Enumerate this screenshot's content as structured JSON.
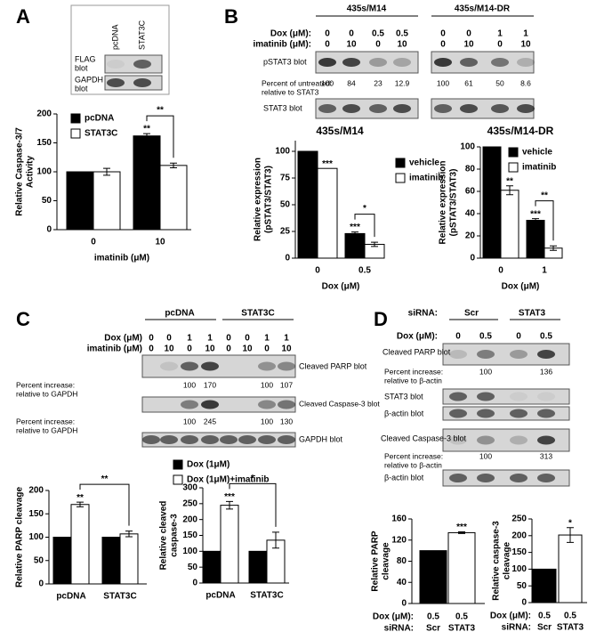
{
  "panel_labels": [
    "A",
    "B",
    "C",
    "D"
  ],
  "chart_data": [
    {
      "type": "bar",
      "categories": [
        "0",
        "10"
      ],
      "xlabel": "imatinib (μM)",
      "ylabel": [
        "Relative Caspase-3/7",
        "Activity"
      ],
      "ylim": [
        0,
        200
      ],
      "yticks": [
        0,
        50,
        100,
        150,
        200
      ],
      "series": [
        {
          "name": "pcDNA",
          "color": "#000000",
          "values": [
            100,
            162
          ],
          "errors": [
            null,
            4
          ],
          "stars": [
            null,
            "**"
          ]
        },
        {
          "name": "STAT3C",
          "color": "#ffffff",
          "values": [
            100,
            111
          ],
          "errors": [
            6,
            4
          ],
          "stars": [
            null,
            null
          ]
        }
      ],
      "bracket": "**"
    },
    {
      "type": "bar",
      "title": "435s/M14",
      "categories": [
        "0",
        "0.5"
      ],
      "xlabel": "Dox (μM)",
      "ylabel": [
        "Relative expression",
        "(pSTAT3/STAT3)"
      ],
      "ylim": [
        0,
        110
      ],
      "yticks": [
        0,
        25,
        50,
        75,
        100
      ],
      "series": [
        {
          "name": "vehicle",
          "color": "#000000",
          "values": [
            100,
            23
          ],
          "errors": [
            null,
            1.5
          ],
          "stars": [
            null,
            "***"
          ]
        },
        {
          "name": "imatinib",
          "color": "#ffffff",
          "values": [
            84,
            12.9
          ],
          "errors": [
            null,
            2
          ],
          "stars": [
            "***",
            null
          ]
        }
      ],
      "bracket": "*"
    },
    {
      "type": "bar",
      "title": "435s/M14-DR",
      "categories": [
        "0",
        "1"
      ],
      "xlabel": "Dox (μM)",
      "ylabel": [
        "Relative expression",
        "(pSTAT3/STAT3)"
      ],
      "ylim": [
        0,
        100
      ],
      "yticks": [
        0,
        20,
        40,
        60,
        80,
        100
      ],
      "series": [
        {
          "name": "vehicle",
          "color": "#000000",
          "values": [
            100,
            34
          ],
          "errors": [
            null,
            1.5
          ],
          "stars": [
            null,
            "***"
          ]
        },
        {
          "name": "imatinib",
          "color": "#ffffff",
          "values": [
            61,
            9
          ],
          "errors": [
            4,
            2
          ],
          "stars": [
            "**",
            null
          ]
        }
      ],
      "bracket": "**"
    },
    {
      "type": "bar",
      "categories": [
        "pcDNA",
        "STAT3C"
      ],
      "ylabel": [
        "Relative PARP cleavage"
      ],
      "ylim": [
        0,
        200
      ],
      "yticks": [
        0,
        50,
        100,
        150,
        200
      ],
      "series": [
        {
          "name": "Dox (1μM)",
          "color": "#000000",
          "values": [
            100,
            100
          ],
          "errors": [
            null,
            null
          ],
          "stars": [
            null,
            null
          ]
        },
        {
          "name": "Dox (1μM)+imatinib",
          "color": "#ffffff",
          "values": [
            170,
            107
          ],
          "errors": [
            5,
            6
          ],
          "stars": [
            "**",
            null
          ]
        }
      ],
      "bracket": "**"
    },
    {
      "type": "bar",
      "categories": [
        "pcDNA",
        "STAT3C"
      ],
      "ylabel": [
        "Relative cleaved",
        "caspase-3"
      ],
      "ylim": [
        0,
        300
      ],
      "yticks": [
        0,
        50,
        100,
        150,
        200,
        250,
        300
      ],
      "series": [
        {
          "color": "#000000",
          "values": [
            100,
            100
          ],
          "errors": [
            null,
            null
          ],
          "stars": [
            null,
            null
          ]
        },
        {
          "color": "#ffffff",
          "values": [
            245,
            135
          ],
          "errors": [
            12,
            25
          ],
          "stars": [
            "***",
            null
          ]
        }
      ],
      "bracket": "*"
    },
    {
      "type": "bar",
      "categories": [
        "Scr",
        "STAT3"
      ],
      "category_label": "siRNA:",
      "dose_label": "Dox (μM):",
      "doses": [
        0.5,
        0.5
      ],
      "ylabel": [
        "Relative PARP",
        "cleavage"
      ],
      "ylim": [
        0,
        160
      ],
      "yticks": [
        0,
        40,
        80,
        120,
        160
      ],
      "values": [
        100,
        134
      ],
      "errors": [
        null,
        1.5
      ],
      "stars": [
        null,
        "***"
      ],
      "colors": [
        "#000000",
        "#ffffff"
      ]
    },
    {
      "type": "bar",
      "categories": [
        "Scr",
        "STAT3"
      ],
      "category_label": "siRNA:",
      "dose_label": "Dox (μM):",
      "doses": [
        0.5,
        0.5
      ],
      "ylabel": [
        "Relative caspase-3",
        "cleavage"
      ],
      "ylim": [
        0,
        250
      ],
      "yticks": [
        0,
        50,
        100,
        150,
        200,
        250
      ],
      "values": [
        100,
        202
      ],
      "errors": [
        null,
        22
      ],
      "stars": [
        null,
        "*"
      ],
      "colors": [
        "#000000",
        "#ffffff"
      ]
    }
  ],
  "blots": {
    "A": {
      "lanes": [
        "pcDNA",
        "STAT3C"
      ],
      "rows": [
        [
          "FLAG",
          "blot"
        ],
        [
          "GAPDH",
          "blot"
        ]
      ]
    },
    "B": {
      "groups": [
        "435s/M14",
        "435s/M14-DR"
      ],
      "dox_label": "Dox (μM):",
      "imatinib_label": "imatinib (μM):",
      "dox": [
        0,
        0,
        0.5,
        0.5,
        0,
        0,
        1,
        1
      ],
      "imatinib": [
        0,
        10,
        0,
        10,
        0,
        10,
        0,
        10
      ],
      "pstat3": "pSTAT3 blot",
      "percent_label": [
        "Percent of untreated:",
        "relative to STAT3"
      ],
      "percents": [
        100,
        84,
        23,
        12.9,
        100,
        61,
        50,
        8.6
      ],
      "stat3": "STAT3 blot"
    },
    "C": {
      "groups": [
        "pcDNA",
        "STAT3C"
      ],
      "dox_label": "Dox (μM)",
      "imatinib_label": "imatinib (μM)",
      "dox": [
        0,
        0,
        1,
        1,
        0,
        0,
        1,
        1
      ],
      "imatinib": [
        0,
        10,
        0,
        10,
        0,
        10,
        0,
        10
      ],
      "parp": "Cleaved PARP blot",
      "parp_percent_label": [
        "Percent increase:",
        "relative to GAPDH"
      ],
      "parp_percents": [
        null,
        null,
        100,
        170,
        null,
        null,
        100,
        107
      ],
      "casp": "Cleaved Caspase-3 blot",
      "casp_percent_label": [
        "Percent increase:",
        "relative to GAPDH"
      ],
      "casp_percents": [
        null,
        null,
        100,
        245,
        null,
        null,
        100,
        130
      ],
      "gapdh": "GAPDH blot"
    },
    "D": {
      "siRNA_label": "siRNA:",
      "groups": [
        "Scr",
        "STAT3"
      ],
      "dox_label": "Dox (μM):",
      "dox": [
        0,
        0.5,
        0,
        0.5
      ],
      "parp": "Cleaved PARP blot",
      "parp_percent_label": [
        "Percent increase:",
        "relative to β-actin"
      ],
      "parp_percents": [
        null,
        100,
        null,
        136
      ],
      "stat3": "STAT3 blot",
      "actin1": "β-actin blot",
      "casp": "Cleaved Caspase-3 blot",
      "casp_percent_label": [
        "Percent increase:",
        "relative to β-actin"
      ],
      "casp_percents": [
        null,
        100,
        null,
        313
      ],
      "actin2": "β-actin blot"
    }
  }
}
